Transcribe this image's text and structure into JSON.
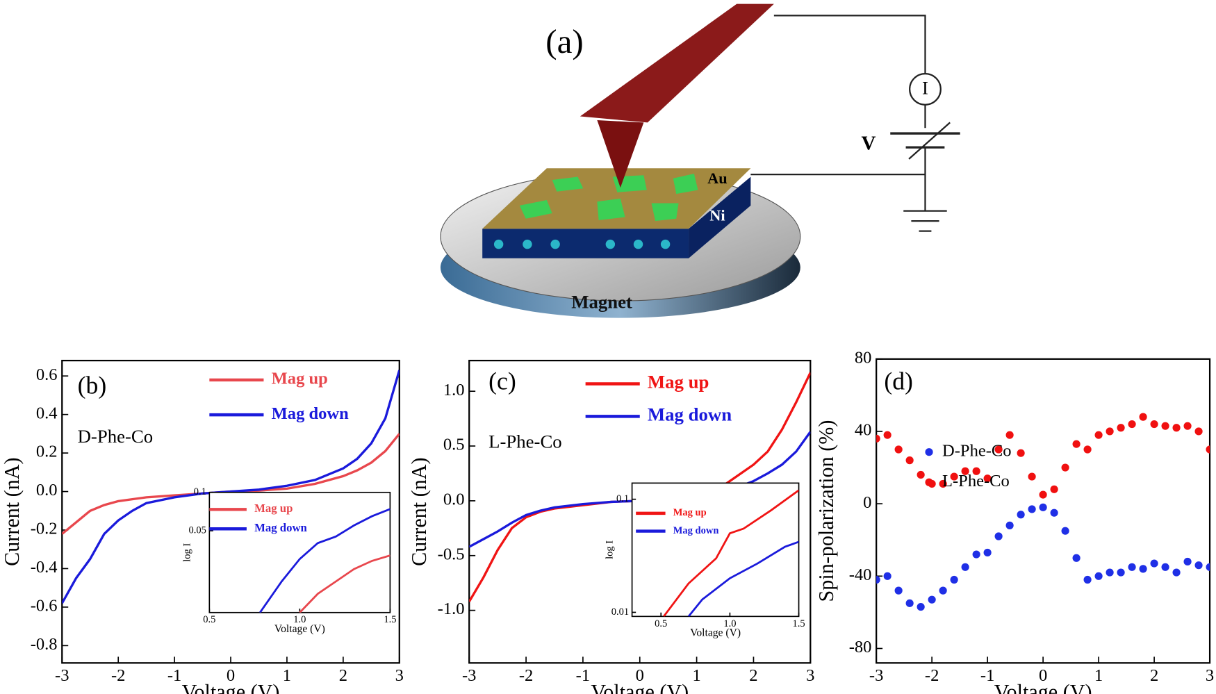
{
  "diagram": {
    "panel_label": "(a)",
    "meter": "I",
    "source": "V",
    "top_layer": "Au",
    "bottom_layer": "Ni",
    "base": "Magnet"
  },
  "chart_data": [
    {
      "type": "line",
      "panel_label": "(b)",
      "annotation": "D-Phe-Co",
      "xlabel": "Voltage (V)",
      "ylabel": "Current (nA)",
      "xlim": [
        -3,
        3
      ],
      "ylim": [
        -0.89,
        0.68
      ],
      "xticks": [
        -3,
        -2,
        -1,
        0,
        1,
        2,
        3
      ],
      "yticks": [
        0.6,
        0.4,
        0.2,
        {
          "value": 0,
          "label": "0.0"
        },
        -0.2,
        -0.4,
        -0.6,
        -0.8
      ],
      "series": [
        {
          "name": "Mag up",
          "color": "#e8474d",
          "x": [
            -3,
            -2.75,
            -2.5,
            -2.25,
            -2,
            -1.75,
            -1.5,
            -1,
            -0.5,
            0,
            0.5,
            1,
            1.5,
            2,
            2.25,
            2.5,
            2.75,
            3
          ],
          "values": [
            -0.22,
            -0.16,
            -0.1,
            -0.07,
            -0.05,
            -0.04,
            -0.03,
            -0.02,
            -0.01,
            0,
            0.005,
            0.015,
            0.04,
            0.08,
            0.11,
            0.15,
            0.21,
            0.3
          ]
        },
        {
          "name": "Mag down",
          "color": "#1a1adb",
          "x": [
            -3,
            -2.75,
            -2.5,
            -2.25,
            -2,
            -1.75,
            -1.5,
            -1,
            -0.5,
            0,
            0.5,
            1,
            1.5,
            2,
            2.25,
            2.5,
            2.75,
            3
          ],
          "values": [
            -0.58,
            -0.45,
            -0.35,
            -0.22,
            -0.15,
            -0.1,
            -0.06,
            -0.03,
            -0.01,
            0,
            0.01,
            0.03,
            0.06,
            0.12,
            0.17,
            0.25,
            0.38,
            0.63
          ]
        }
      ]
    },
    {
      "type": "line",
      "inset": true,
      "log_y": true,
      "xlabel": "Voltage (V)",
      "ylabel": "log I",
      "xlim": [
        0.5,
        1.5
      ],
      "ylim": [
        0.0114,
        0.1
      ],
      "xticks": [
        0.5,
        {
          "value": 1,
          "label": "1.0"
        },
        1.5
      ],
      "yticks": [
        0.1,
        0.05
      ],
      "series": [
        {
          "name": "Mag up",
          "color": "#e8474d",
          "x": [
            1.0,
            1.1,
            1.2,
            1.3,
            1.4,
            1.5
          ],
          "values": [
            0.0114,
            0.016,
            0.02,
            0.025,
            0.029,
            0.032
          ]
        },
        {
          "name": "Mag down",
          "color": "#1a1adb",
          "x": [
            0.78,
            0.9,
            1.0,
            1.1,
            1.2,
            1.3,
            1.4,
            1.5
          ],
          "values": [
            0.0114,
            0.02,
            0.03,
            0.04,
            0.045,
            0.055,
            0.065,
            0.074
          ]
        }
      ]
    },
    {
      "type": "line",
      "panel_label": "(c)",
      "annotation": "L-Phe-Co",
      "xlabel": "Voltage (V)",
      "ylabel": "Current (nA)",
      "xlim": [
        -3,
        3
      ],
      "ylim": [
        -1.48,
        1.28
      ],
      "xticks": [
        -3,
        -2,
        -1,
        0,
        1,
        2,
        3
      ],
      "yticks": [
        {
          "value": 1,
          "label": "1.0"
        },
        0.5,
        {
          "value": 0,
          "label": "0.0"
        },
        -0.5,
        {
          "value": -1,
          "label": "-1.0"
        }
      ],
      "series": [
        {
          "name": "Mag up",
          "color": "#f01414",
          "x": [
            -3,
            -2.75,
            -2.5,
            -2.25,
            -2,
            -1.75,
            -1.5,
            -1,
            -0.5,
            0,
            0.5,
            1,
            1.5,
            2,
            2.25,
            2.5,
            2.75,
            3
          ],
          "values": [
            -0.92,
            -0.7,
            -0.45,
            -0.25,
            -0.15,
            -0.1,
            -0.07,
            -0.04,
            -0.01,
            0,
            0.01,
            0.04,
            0.15,
            0.33,
            0.45,
            0.65,
            0.9,
            1.17
          ]
        },
        {
          "name": "Mag down",
          "color": "#1a1adb",
          "x": [
            -3,
            -2.75,
            -2.5,
            -2.25,
            -2,
            -1.75,
            -1.5,
            -1,
            -0.5,
            0,
            0.5,
            1,
            1.5,
            2,
            2.25,
            2.5,
            2.75,
            3
          ],
          "values": [
            -0.42,
            -0.35,
            -0.28,
            -0.2,
            -0.13,
            -0.09,
            -0.06,
            -0.03,
            -0.01,
            0,
            0.005,
            0.02,
            0.08,
            0.18,
            0.25,
            0.33,
            0.45,
            0.63
          ]
        }
      ]
    },
    {
      "type": "line",
      "inset": true,
      "log_y": true,
      "xlabel": "Voltage (V)",
      "ylabel": "log I",
      "xlim": [
        0.29,
        1.5
      ],
      "ylim": [
        0.0092,
        0.139
      ],
      "xticks": [
        0.5,
        {
          "value": 1,
          "label": "1.0"
        },
        1.5
      ],
      "yticks": [
        0.1,
        0.01
      ],
      "series": [
        {
          "name": "Mag up",
          "color": "#f01414",
          "x": [
            0.52,
            0.7,
            0.9,
            1.0,
            1.1,
            1.3,
            1.5
          ],
          "values": [
            0.0092,
            0.018,
            0.03,
            0.05,
            0.055,
            0.08,
            0.12
          ]
        },
        {
          "name": "Mag down",
          "color": "#1a1adb",
          "x": [
            0.7,
            0.8,
            1.0,
            1.2,
            1.4,
            1.5
          ],
          "values": [
            0.0092,
            0.013,
            0.02,
            0.027,
            0.038,
            0.042
          ]
        }
      ]
    },
    {
      "type": "scatter",
      "panel_label": "(d)",
      "xlabel": "Voltage (V)",
      "ylabel": "Spin-polarization (%)",
      "xlim": [
        -3,
        3
      ],
      "ylim": [
        -88,
        80
      ],
      "xticks": [
        -3,
        -2,
        -1,
        0,
        1,
        2,
        3
      ],
      "yticks": [
        80,
        40,
        0,
        -40,
        -80
      ],
      "x": [
        -3,
        -2.8,
        -2.6,
        -2.4,
        -2.2,
        -2,
        -1.8,
        -1.6,
        -1.4,
        -1.2,
        -1,
        -0.8,
        -0.6,
        -0.4,
        -0.2,
        0,
        0.2,
        0.4,
        0.6,
        0.8,
        1,
        1.2,
        1.4,
        1.6,
        1.8,
        2,
        2.2,
        2.4,
        2.6,
        2.8,
        3
      ],
      "series": [
        {
          "name": "D-Phe-Co",
          "color": "#1f2fe6",
          "values": [
            -42,
            -40,
            -48,
            -55,
            -57,
            -53,
            -48,
            -42,
            -35,
            -28,
            -27,
            -18,
            -12,
            -6,
            -3,
            -2,
            -5,
            -15,
            -30,
            -42,
            -40,
            -38,
            -38,
            -35,
            -36,
            -33,
            -35,
            -38,
            -32,
            -34,
            -35
          ]
        },
        {
          "name": "L-Phe-Co",
          "color": "#f01010",
          "values": [
            36,
            38,
            30,
            24,
            16,
            11,
            11,
            15,
            18,
            18,
            14,
            30,
            38,
            28,
            15,
            5,
            8,
            20,
            33,
            30,
            38,
            40,
            42,
            44,
            48,
            44,
            43,
            42,
            43,
            40,
            30
          ]
        }
      ]
    }
  ]
}
